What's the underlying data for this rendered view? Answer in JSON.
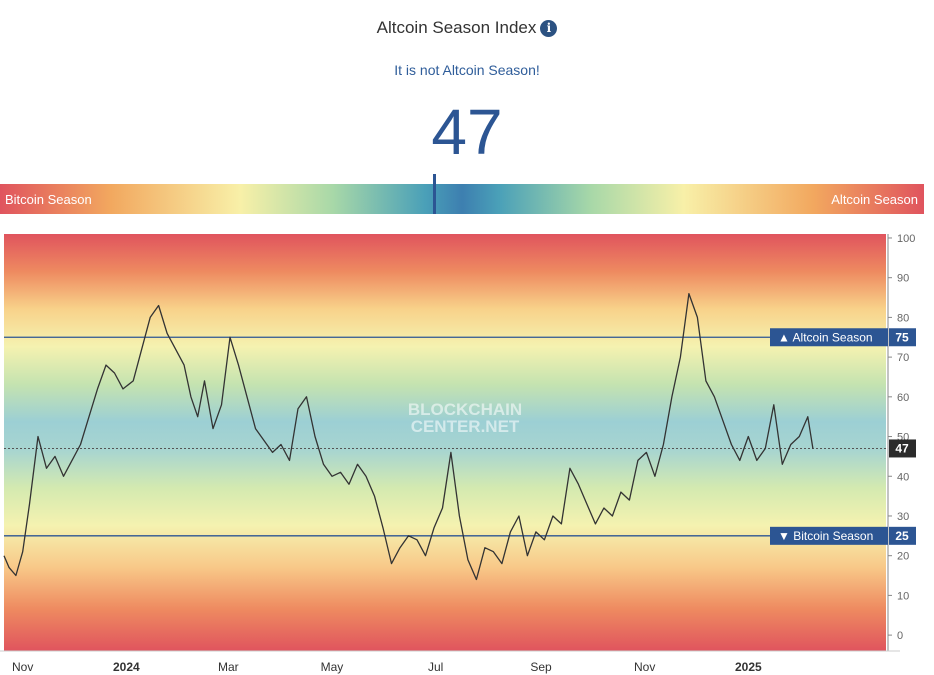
{
  "header": {
    "title": "Altcoin Season Index",
    "info_icon": "info-circle-icon",
    "status": "It is not Altcoin Season!",
    "value": "47"
  },
  "gauge": {
    "left_label": "Bitcoin Season",
    "right_label": "Altcoin Season",
    "value": 47
  },
  "watermark": {
    "line1": "BLOCKCHAIN",
    "line2": "CENTER.NET"
  },
  "colors": {
    "line": "#333333",
    "threshold": "#2c5593",
    "label_bg": "#2c5593"
  },
  "chart_data": {
    "type": "line",
    "ylim": [
      -4,
      101
    ],
    "y_ticks": [
      0,
      10,
      20,
      30,
      40,
      50,
      60,
      70,
      80,
      90,
      100
    ],
    "x_ticks": [
      {
        "label": "Nov",
        "date": "2023-11-01",
        "bold": false
      },
      {
        "label": "2024",
        "date": "2024-01-01",
        "bold": true
      },
      {
        "label": "Mar",
        "date": "2024-03-01",
        "bold": false
      },
      {
        "label": "May",
        "date": "2024-05-01",
        "bold": false
      },
      {
        "label": "Jul",
        "date": "2024-07-01",
        "bold": false
      },
      {
        "label": "Sep",
        "date": "2024-09-01",
        "bold": false
      },
      {
        "label": "Nov",
        "date": "2024-11-01",
        "bold": false
      },
      {
        "label": "2025",
        "date": "2025-01-01",
        "bold": true
      }
    ],
    "x_range": [
      "2023-10-21",
      "2025-03-23"
    ],
    "thresholds": [
      {
        "label": "▲ Altcoin Season",
        "value": 75
      },
      {
        "label": "▼ Bitcoin Season",
        "value": 25
      }
    ],
    "current_value": 47,
    "series": [
      {
        "dates": [
          "2023-10-21",
          "2023-10-24",
          "2023-10-28",
          "2023-11-01",
          "2023-11-05",
          "2023-11-10",
          "2023-11-15",
          "2023-11-20",
          "2023-11-25",
          "2023-11-30",
          "2023-12-05",
          "2023-12-10",
          "2023-12-15",
          "2023-12-20",
          "2023-12-25",
          "2023-12-30",
          "2024-01-05",
          "2024-01-10",
          "2024-01-15",
          "2024-01-20",
          "2024-01-25",
          "2024-01-30",
          "2024-02-04",
          "2024-02-08",
          "2024-02-12",
          "2024-02-16",
          "2024-02-21",
          "2024-02-26",
          "2024-03-02",
          "2024-03-07",
          "2024-03-12",
          "2024-03-17",
          "2024-03-22",
          "2024-03-27",
          "2024-04-01",
          "2024-04-06",
          "2024-04-11",
          "2024-04-16",
          "2024-04-21",
          "2024-04-26",
          "2024-05-01",
          "2024-05-06",
          "2024-05-11",
          "2024-05-16",
          "2024-05-21",
          "2024-05-26",
          "2024-05-31",
          "2024-06-05",
          "2024-06-10",
          "2024-06-15",
          "2024-06-20",
          "2024-06-25",
          "2024-06-30",
          "2024-07-05",
          "2024-07-10",
          "2024-07-15",
          "2024-07-20",
          "2024-07-25",
          "2024-07-30",
          "2024-08-04",
          "2024-08-09",
          "2024-08-14",
          "2024-08-19",
          "2024-08-24",
          "2024-08-29",
          "2024-09-03",
          "2024-09-08",
          "2024-09-13",
          "2024-09-18",
          "2024-09-23",
          "2024-09-28",
          "2024-10-03",
          "2024-10-08",
          "2024-10-13",
          "2024-10-18",
          "2024-10-23",
          "2024-10-28",
          "2024-11-02",
          "2024-11-07",
          "2024-11-12",
          "2024-11-17",
          "2024-11-22",
          "2024-11-27",
          "2024-12-02",
          "2024-12-07",
          "2024-12-12",
          "2024-12-17",
          "2024-12-22",
          "2024-12-27",
          "2025-01-01",
          "2025-01-06",
          "2025-01-11",
          "2025-01-16",
          "2025-01-21",
          "2025-01-26",
          "2025-01-31",
          "2025-02-05",
          "2025-02-08"
        ],
        "values": [
          20,
          17,
          15,
          21,
          33,
          50,
          42,
          45,
          40,
          44,
          48,
          55,
          62,
          68,
          66,
          62,
          64,
          72,
          80,
          83,
          76,
          72,
          68,
          60,
          55,
          64,
          52,
          58,
          75,
          68,
          60,
          52,
          49,
          46,
          48,
          44,
          57,
          60,
          50,
          43,
          40,
          41,
          38,
          43,
          40,
          35,
          27,
          18,
          22,
          25,
          24,
          20,
          27,
          32,
          46,
          30,
          19,
          14,
          22,
          21,
          18,
          26,
          30,
          20,
          26,
          24,
          30,
          28,
          42,
          38,
          33,
          28,
          32,
          30,
          36,
          34,
          44,
          46,
          40,
          48,
          60,
          70,
          86,
          80,
          64,
          60,
          54,
          48,
          44,
          50,
          44,
          47,
          58,
          43,
          48,
          50,
          55,
          47
        ]
      }
    ]
  }
}
